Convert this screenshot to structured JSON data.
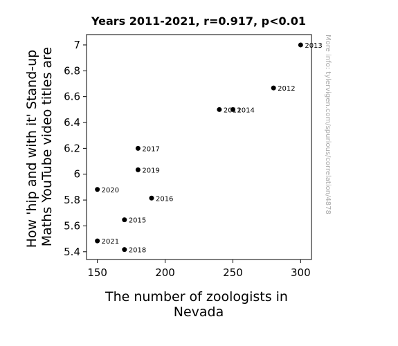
{
  "chart_data": {
    "type": "scatter",
    "title": "Years 2011-2021, r=0.917, p<0.01",
    "xlabel_lines": [
      "The number of zoologists in",
      "Nevada"
    ],
    "ylabel_lines": [
      "How 'hip and with it' Stand-up",
      "Maths YouTube video titles are"
    ],
    "watermark": "More info: tylervigen.com/spurious/correlation/4878",
    "xlim": [
      142,
      308
    ],
    "ylim": [
      5.34,
      7.08
    ],
    "x_ticks": [
      150,
      200,
      250,
      300
    ],
    "y_ticks": [
      5.4,
      5.6,
      5.8,
      6,
      6.2,
      6.4,
      6.6,
      6.8,
      7
    ],
    "x_tick_labels": [
      "150",
      "200",
      "250",
      "300"
    ],
    "y_tick_labels": [
      "5.4",
      "5.6",
      "5.8",
      "6",
      "6.2",
      "6.4",
      "6.6",
      "6.8",
      "7"
    ],
    "points": [
      {
        "label": "2011",
        "x": 240,
        "y": 6.5
      },
      {
        "label": "2012",
        "x": 280,
        "y": 6.667
      },
      {
        "label": "2013",
        "x": 300,
        "y": 7.0
      },
      {
        "label": "2014",
        "x": 250,
        "y": 6.5
      },
      {
        "label": "2015",
        "x": 170,
        "y": 5.647
      },
      {
        "label": "2016",
        "x": 190,
        "y": 5.815
      },
      {
        "label": "2017",
        "x": 180,
        "y": 6.2
      },
      {
        "label": "2018",
        "x": 170,
        "y": 5.417
      },
      {
        "label": "2019",
        "x": 180,
        "y": 6.034
      },
      {
        "label": "2020",
        "x": 150,
        "y": 5.882
      },
      {
        "label": "2021",
        "x": 150,
        "y": 5.484
      }
    ],
    "marker_color": "#000000",
    "grid": false,
    "legend": "none"
  }
}
